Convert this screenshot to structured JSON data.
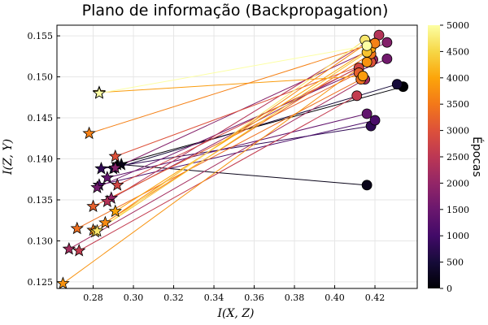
{
  "chart_data": {
    "type": "scatter",
    "title": "Plano de informação (Backpropagation)",
    "xlabel": "I(X, Z)",
    "ylabel": "I(Z, Y)",
    "xlim": [
      0.262,
      0.441
    ],
    "ylim": [
      0.1242,
      0.1563
    ],
    "xticks": [
      "0.28",
      "0.30",
      "0.32",
      "0.34",
      "0.36",
      "0.38",
      "0.40",
      "0.42"
    ],
    "yticks": [
      "0.125",
      "0.130",
      "0.135",
      "0.140",
      "0.145",
      "0.150",
      "0.155"
    ],
    "grid": true,
    "markers": {
      "start": "star",
      "end": "circle"
    },
    "colorbar": {
      "label": "Épocas",
      "range": [
        0,
        5000
      ],
      "ticks": [
        "0",
        "500",
        "1000",
        "1500",
        "2000",
        "2500",
        "3000",
        "3500",
        "4000",
        "4500",
        "5000"
      ],
      "colormap": "inferno"
    },
    "series": [
      {
        "epoch": 0,
        "start": [
          0.292,
          0.1393
        ],
        "end": [
          0.434,
          0.1488
        ]
      },
      {
        "epoch": 200,
        "start": [
          0.294,
          0.1393
        ],
        "end": [
          0.416,
          0.1368
        ]
      },
      {
        "epoch": 500,
        "start": [
          0.29,
          0.1388
        ],
        "end": [
          0.431,
          0.1491
        ]
      },
      {
        "epoch": 800,
        "start": [
          0.284,
          0.1388
        ],
        "end": [
          0.418,
          0.144
        ]
      },
      {
        "epoch": 1100,
        "start": [
          0.283,
          0.1368
        ],
        "end": [
          0.42,
          0.1447
        ]
      },
      {
        "epoch": 1400,
        "start": [
          0.287,
          0.1377
        ],
        "end": [
          0.416,
          0.1455
        ]
      },
      {
        "epoch": 1600,
        "start": [
          0.282,
          0.1365
        ],
        "end": [
          0.426,
          0.1522
        ]
      },
      {
        "epoch": 1800,
        "start": [
          0.291,
          0.1389
        ],
        "end": [
          0.426,
          0.1542
        ]
      },
      {
        "epoch": 2000,
        "start": [
          0.289,
          0.1352
        ],
        "end": [
          0.419,
          0.1521
        ]
      },
      {
        "epoch": 2200,
        "start": [
          0.268,
          0.129
        ],
        "end": [
          0.415,
          0.1497
        ]
      },
      {
        "epoch": 2400,
        "start": [
          0.287,
          0.1348
        ],
        "end": [
          0.422,
          0.1551
        ]
      },
      {
        "epoch": 2600,
        "start": [
          0.273,
          0.1288
        ],
        "end": [
          0.411,
          0.1477
        ]
      },
      {
        "epoch": 2800,
        "start": [
          0.292,
          0.1368
        ],
        "end": [
          0.412,
          0.1511
        ]
      },
      {
        "epoch": 3000,
        "start": [
          0.291,
          0.1403
        ],
        "end": [
          0.418,
          0.1518
        ]
      },
      {
        "epoch": 3200,
        "start": [
          0.28,
          0.1342
        ],
        "end": [
          0.412,
          0.1505
        ]
      },
      {
        "epoch": 3400,
        "start": [
          0.272,
          0.1315
        ],
        "end": [
          0.413,
          0.1497
        ]
      },
      {
        "epoch": 3500,
        "start": [
          0.28,
          0.1313
        ],
        "end": [
          0.418,
          0.1528
        ]
      },
      {
        "epoch": 3700,
        "start": [
          0.286,
          0.1322
        ],
        "end": [
          0.416,
          0.1541
        ]
      },
      {
        "epoch": 3800,
        "start": [
          0.265,
          0.1248
        ],
        "end": [
          0.416,
          0.1518
        ]
      },
      {
        "epoch": 4000,
        "start": [
          0.291,
          0.1336
        ],
        "end": [
          0.418,
          0.1535
        ]
      },
      {
        "epoch": 3900,
        "start": [
          0.283,
          0.1481
        ],
        "end": [
          0.414,
          0.1501
        ]
      },
      {
        "epoch": 3600,
        "start": [
          0.278,
          0.1431
        ],
        "end": [
          0.42,
          0.1541
        ]
      },
      {
        "epoch": 4300,
        "start": [
          0.281,
          0.1311
        ],
        "end": [
          0.416,
          0.153
        ]
      },
      {
        "epoch": 4700,
        "start": [
          0.282,
          0.1312
        ],
        "end": [
          0.415,
          0.1545
        ]
      },
      {
        "epoch": 5000,
        "start": [
          0.283,
          0.148
        ],
        "end": [
          0.416,
          0.1538
        ]
      }
    ]
  }
}
